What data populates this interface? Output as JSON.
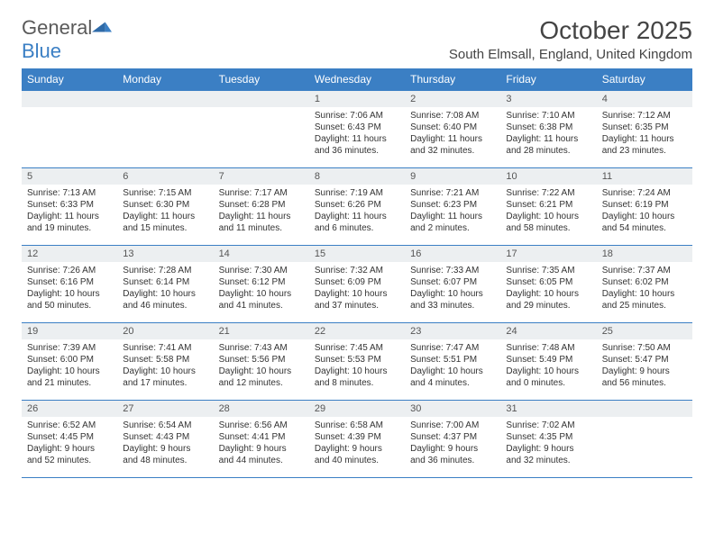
{
  "brand": {
    "name_part1": "General",
    "name_part2": "Blue"
  },
  "title": "October 2025",
  "location": "South Elmsall, England, United Kingdom",
  "colors": {
    "header_bg": "#3b7fc4",
    "header_text": "#ffffff",
    "daynum_bg": "#eceff1",
    "border": "#3b7fc4",
    "text": "#333333",
    "brand_gray": "#5a5a5a",
    "brand_blue": "#3b7fc4",
    "background": "#ffffff"
  },
  "font": {
    "family": "Arial",
    "title_size": 28,
    "location_size": 15,
    "th_size": 12,
    "cell_size": 10
  },
  "day_headers": [
    "Sunday",
    "Monday",
    "Tuesday",
    "Wednesday",
    "Thursday",
    "Friday",
    "Saturday"
  ],
  "weeks": [
    [
      null,
      null,
      null,
      {
        "n": "1",
        "sunrise": "7:06 AM",
        "sunset": "6:43 PM",
        "daylight": "11 hours and 36 minutes."
      },
      {
        "n": "2",
        "sunrise": "7:08 AM",
        "sunset": "6:40 PM",
        "daylight": "11 hours and 32 minutes."
      },
      {
        "n": "3",
        "sunrise": "7:10 AM",
        "sunset": "6:38 PM",
        "daylight": "11 hours and 28 minutes."
      },
      {
        "n": "4",
        "sunrise": "7:12 AM",
        "sunset": "6:35 PM",
        "daylight": "11 hours and 23 minutes."
      }
    ],
    [
      {
        "n": "5",
        "sunrise": "7:13 AM",
        "sunset": "6:33 PM",
        "daylight": "11 hours and 19 minutes."
      },
      {
        "n": "6",
        "sunrise": "7:15 AM",
        "sunset": "6:30 PM",
        "daylight": "11 hours and 15 minutes."
      },
      {
        "n": "7",
        "sunrise": "7:17 AM",
        "sunset": "6:28 PM",
        "daylight": "11 hours and 11 minutes."
      },
      {
        "n": "8",
        "sunrise": "7:19 AM",
        "sunset": "6:26 PM",
        "daylight": "11 hours and 6 minutes."
      },
      {
        "n": "9",
        "sunrise": "7:21 AM",
        "sunset": "6:23 PM",
        "daylight": "11 hours and 2 minutes."
      },
      {
        "n": "10",
        "sunrise": "7:22 AM",
        "sunset": "6:21 PM",
        "daylight": "10 hours and 58 minutes."
      },
      {
        "n": "11",
        "sunrise": "7:24 AM",
        "sunset": "6:19 PM",
        "daylight": "10 hours and 54 minutes."
      }
    ],
    [
      {
        "n": "12",
        "sunrise": "7:26 AM",
        "sunset": "6:16 PM",
        "daylight": "10 hours and 50 minutes."
      },
      {
        "n": "13",
        "sunrise": "7:28 AM",
        "sunset": "6:14 PM",
        "daylight": "10 hours and 46 minutes."
      },
      {
        "n": "14",
        "sunrise": "7:30 AM",
        "sunset": "6:12 PM",
        "daylight": "10 hours and 41 minutes."
      },
      {
        "n": "15",
        "sunrise": "7:32 AM",
        "sunset": "6:09 PM",
        "daylight": "10 hours and 37 minutes."
      },
      {
        "n": "16",
        "sunrise": "7:33 AM",
        "sunset": "6:07 PM",
        "daylight": "10 hours and 33 minutes."
      },
      {
        "n": "17",
        "sunrise": "7:35 AM",
        "sunset": "6:05 PM",
        "daylight": "10 hours and 29 minutes."
      },
      {
        "n": "18",
        "sunrise": "7:37 AM",
        "sunset": "6:02 PM",
        "daylight": "10 hours and 25 minutes."
      }
    ],
    [
      {
        "n": "19",
        "sunrise": "7:39 AM",
        "sunset": "6:00 PM",
        "daylight": "10 hours and 21 minutes."
      },
      {
        "n": "20",
        "sunrise": "7:41 AM",
        "sunset": "5:58 PM",
        "daylight": "10 hours and 17 minutes."
      },
      {
        "n": "21",
        "sunrise": "7:43 AM",
        "sunset": "5:56 PM",
        "daylight": "10 hours and 12 minutes."
      },
      {
        "n": "22",
        "sunrise": "7:45 AM",
        "sunset": "5:53 PM",
        "daylight": "10 hours and 8 minutes."
      },
      {
        "n": "23",
        "sunrise": "7:47 AM",
        "sunset": "5:51 PM",
        "daylight": "10 hours and 4 minutes."
      },
      {
        "n": "24",
        "sunrise": "7:48 AM",
        "sunset": "5:49 PM",
        "daylight": "10 hours and 0 minutes."
      },
      {
        "n": "25",
        "sunrise": "7:50 AM",
        "sunset": "5:47 PM",
        "daylight": "9 hours and 56 minutes."
      }
    ],
    [
      {
        "n": "26",
        "sunrise": "6:52 AM",
        "sunset": "4:45 PM",
        "daylight": "9 hours and 52 minutes."
      },
      {
        "n": "27",
        "sunrise": "6:54 AM",
        "sunset": "4:43 PM",
        "daylight": "9 hours and 48 minutes."
      },
      {
        "n": "28",
        "sunrise": "6:56 AM",
        "sunset": "4:41 PM",
        "daylight": "9 hours and 44 minutes."
      },
      {
        "n": "29",
        "sunrise": "6:58 AM",
        "sunset": "4:39 PM",
        "daylight": "9 hours and 40 minutes."
      },
      {
        "n": "30",
        "sunrise": "7:00 AM",
        "sunset": "4:37 PM",
        "daylight": "9 hours and 36 minutes."
      },
      {
        "n": "31",
        "sunrise": "7:02 AM",
        "sunset": "4:35 PM",
        "daylight": "9 hours and 32 minutes."
      },
      null
    ]
  ],
  "labels": {
    "sunrise": "Sunrise:",
    "sunset": "Sunset:",
    "daylight": "Daylight:"
  }
}
